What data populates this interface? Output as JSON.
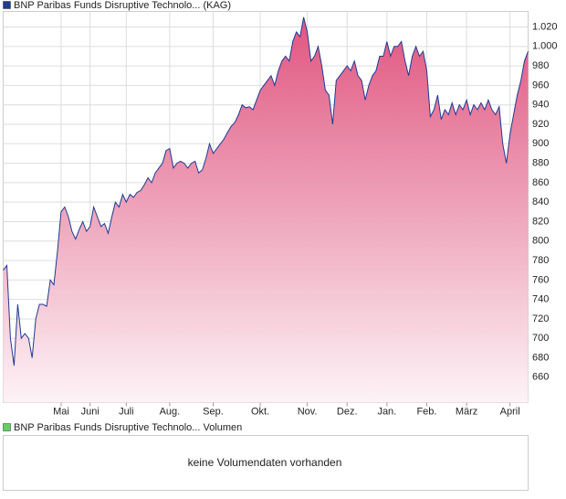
{
  "chart_data": {
    "type": "area",
    "series": [
      {
        "name": "BNP Paribas Funds Disruptive Technolo... (KAG)",
        "color": "#1f3a93",
        "fill_top": "#e05580",
        "fill_bottom": "#fdf3f6",
        "values": [
          770,
          775,
          700,
          672,
          735,
          700,
          705,
          700,
          680,
          720,
          735,
          735,
          733,
          760,
          755,
          790,
          830,
          835,
          825,
          810,
          802,
          812,
          820,
          810,
          815,
          835,
          825,
          815,
          818,
          808,
          825,
          840,
          835,
          848,
          840,
          848,
          845,
          850,
          852,
          858,
          865,
          860,
          870,
          875,
          880,
          893,
          895,
          875,
          880,
          882,
          880,
          875,
          880,
          882,
          870,
          873,
          885,
          900,
          890,
          895,
          900,
          905,
          912,
          918,
          922,
          930,
          940,
          937,
          938,
          935,
          945,
          955,
          960,
          965,
          970,
          960,
          975,
          985,
          990,
          985,
          1005,
          1015,
          1010,
          1030,
          1015,
          985,
          990,
          1000,
          980,
          955,
          950,
          920,
          965,
          970,
          975,
          980,
          975,
          985,
          970,
          965,
          945,
          960,
          970,
          975,
          990,
          990,
          1005,
          990,
          1000,
          1000,
          1005,
          985,
          970,
          990,
          1000,
          990,
          995,
          975,
          928,
          935,
          950,
          925,
          935,
          930,
          942,
          930,
          940,
          935,
          945,
          930,
          940,
          935,
          942,
          935,
          945,
          935,
          930,
          938,
          900,
          880,
          910,
          930,
          950,
          965,
          985,
          995
        ]
      }
    ],
    "xticks": [
      {
        "value": 16,
        "label": "Mai"
      },
      {
        "value": 24,
        "label": "Juni"
      },
      {
        "value": 34,
        "label": "Juli"
      },
      {
        "value": 46,
        "label": "Aug."
      },
      {
        "value": 58,
        "label": "Sep."
      },
      {
        "value": 71,
        "label": "Okt."
      },
      {
        "value": 84,
        "label": "Nov."
      },
      {
        "value": 95,
        "label": "Dez."
      },
      {
        "value": 106,
        "label": "Jan."
      },
      {
        "value": 117,
        "label": "Feb."
      },
      {
        "value": 128,
        "label": "März"
      },
      {
        "value": 140,
        "label": "April"
      }
    ],
    "xlim": [
      0,
      145
    ],
    "ylim": [
      634,
      1036
    ],
    "yticks": [
      660,
      680,
      700,
      720,
      740,
      760,
      780,
      800,
      820,
      840,
      860,
      880,
      900,
      920,
      940,
      960,
      980,
      {
        "value": 1000,
        "label": "1.000"
      },
      {
        "value": 1020,
        "label": "1.020"
      }
    ],
    "grid": true,
    "volume_panel": {
      "legend": "BNP Paribas Funds Disruptive Technolo... Volumen",
      "legend_color": "#6c6",
      "message": "keine Volumendaten vorhanden"
    }
  }
}
